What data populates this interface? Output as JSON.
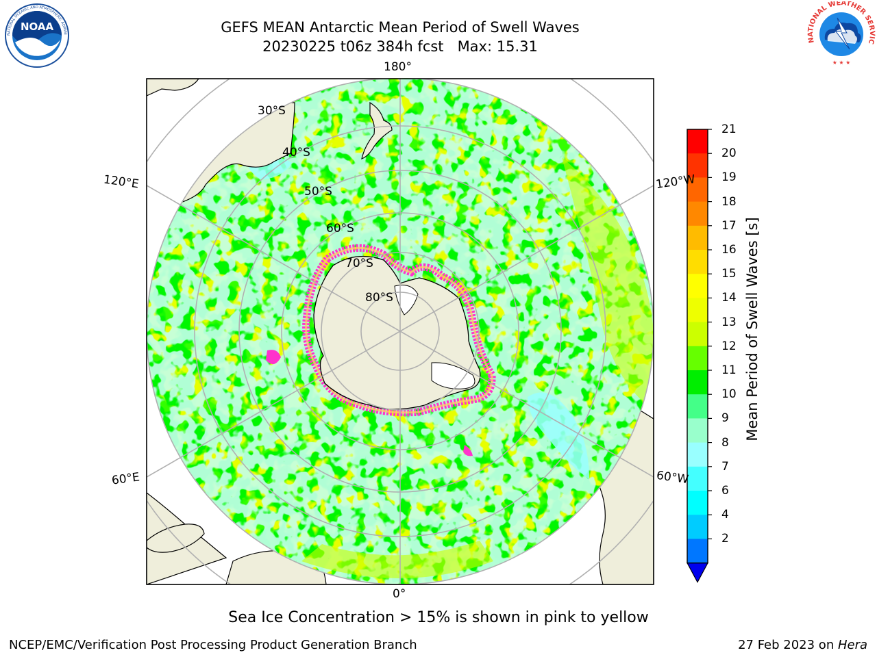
{
  "title": {
    "line1": "GEFS MEAN Antarctic Mean Period of Swell Waves",
    "line2": "20230225 t06z 384h fcst   Max: 15.31"
  },
  "logos": {
    "left": {
      "name": "noaa-logo",
      "text": "NOAA",
      "ring_text": "NATIONAL OCEANIC AND ATMOSPHERIC ADMINISTRATION · U.S. DEPARTMENT OF COMMERCE"
    },
    "right": {
      "name": "nws-logo",
      "ring_text": "NATIONAL WEATHER SERVICE"
    }
  },
  "map": {
    "projection": "south-polar-stereographic",
    "longitude_labels": {
      "top": "180°",
      "bottom": "0°",
      "left_upper": "120°E",
      "left_lower": "60°E",
      "right_upper": "120°W",
      "right_lower": "60°W"
    },
    "latitude_labels": [
      "30°S",
      "40°S",
      "50°S",
      "60°S",
      "70°S",
      "80°S"
    ],
    "field_colors": {
      "dominant": "#33ff00",
      "secondary": "#ccff00",
      "minor": "#99ffcc",
      "sea_ice": "#ff33cc",
      "land": "#efeedb",
      "grid": "#b0b0b0"
    }
  },
  "colorbar": {
    "label": "Mean Period of Swell Waves [s]",
    "ticks": [
      "21",
      "20",
      "19",
      "18",
      "17",
      "16",
      "15",
      "14",
      "13",
      "12",
      "11",
      "10",
      "9",
      "8",
      "7",
      "6",
      "4",
      "2"
    ],
    "bands": [
      {
        "from": "20",
        "to": "21",
        "color": "#ff0000"
      },
      {
        "from": "19",
        "to": "20",
        "color": "#ff3300"
      },
      {
        "from": "18",
        "to": "19",
        "color": "#ff6600"
      },
      {
        "from": "17",
        "to": "18",
        "color": "#ff8800"
      },
      {
        "from": "16",
        "to": "17",
        "color": "#ffbb00"
      },
      {
        "from": "15",
        "to": "16",
        "color": "#ffdd00"
      },
      {
        "from": "14",
        "to": "15",
        "color": "#ffff00"
      },
      {
        "from": "13",
        "to": "14",
        "color": "#eeff00"
      },
      {
        "from": "12",
        "to": "13",
        "color": "#ccff00"
      },
      {
        "from": "11",
        "to": "12",
        "color": "#66ff00"
      },
      {
        "from": "10",
        "to": "11",
        "color": "#00ee00"
      },
      {
        "from": "9",
        "to": "10",
        "color": "#44ff88"
      },
      {
        "from": "8",
        "to": "9",
        "color": "#99ffcc"
      },
      {
        "from": "7",
        "to": "8",
        "color": "#99ffff"
      },
      {
        "from": "6",
        "to": "7",
        "color": "#44ffff"
      },
      {
        "from": "4",
        "to": "6",
        "color": "#00ffff"
      },
      {
        "from": "2",
        "to": "4",
        "color": "#00ccff"
      },
      {
        "from": "",
        "to": "2",
        "color": "#0077ff"
      }
    ],
    "extend_color": "#0000ee"
  },
  "caption": "Sea Ice Concentration > 15% is shown in pink to yellow",
  "footer": {
    "left": "NCEP/EMC/Verification Post Processing Product Generation Branch",
    "date": "27 Feb 2023 on ",
    "host": "Hera"
  }
}
